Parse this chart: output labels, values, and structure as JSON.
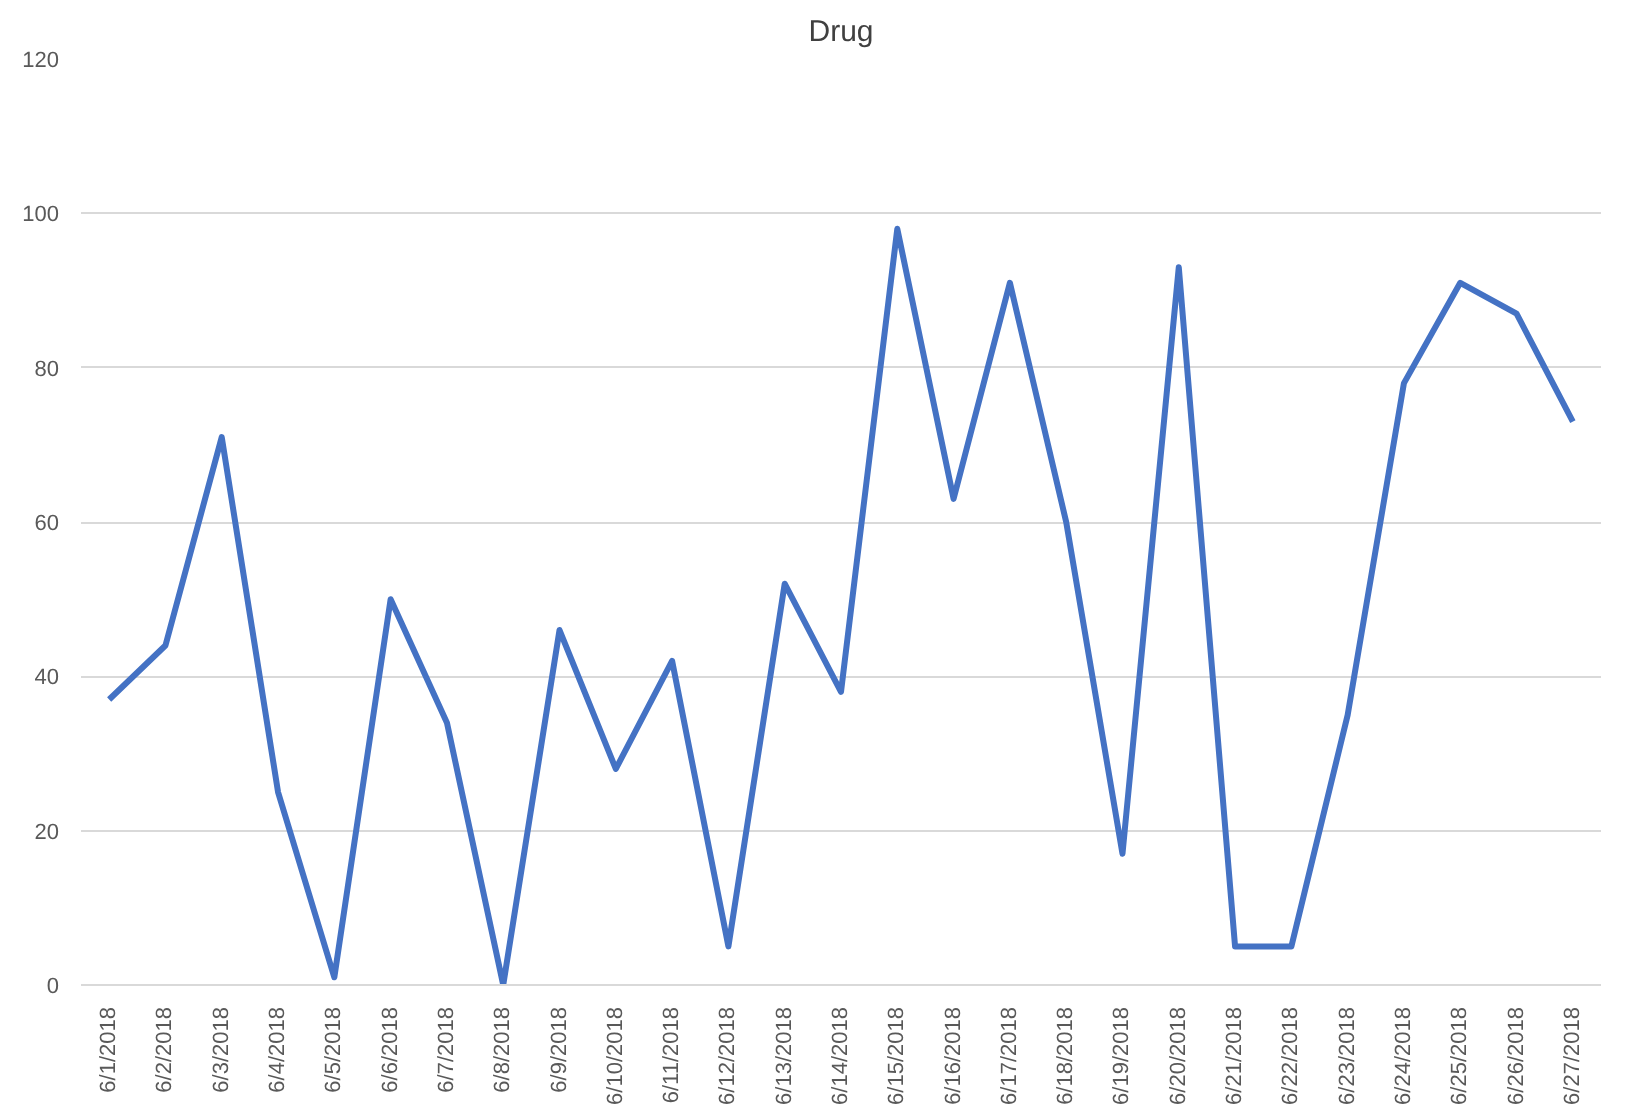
{
  "chart_data": {
    "type": "line",
    "title": "Drug",
    "categories": [
      "6/1/2018",
      "6/2/2018",
      "6/3/2018",
      "6/4/2018",
      "6/5/2018",
      "6/6/2018",
      "6/7/2018",
      "6/8/2018",
      "6/9/2018",
      "6/10/2018",
      "6/11/2018",
      "6/12/2018",
      "6/13/2018",
      "6/14/2018",
      "6/15/2018",
      "6/16/2018",
      "6/17/2018",
      "6/18/2018",
      "6/19/2018",
      "6/20/2018",
      "6/21/2018",
      "6/22/2018",
      "6/23/2018",
      "6/24/2018",
      "6/25/2018",
      "6/26/2018",
      "6/27/2018"
    ],
    "series": [
      {
        "color": "#4472c4",
        "values": [
          37,
          44,
          71,
          25,
          1,
          50,
          34,
          0,
          46,
          28,
          42,
          5,
          52,
          38,
          98,
          63,
          91,
          60,
          17,
          93,
          5,
          5,
          35,
          78,
          91,
          87,
          73
        ]
      }
    ],
    "ylim": [
      0,
      120
    ],
    "yticks": [
      0,
      20,
      40,
      60,
      80,
      100,
      120
    ],
    "grid": "y",
    "marker": "none",
    "line_style": "solid"
  }
}
